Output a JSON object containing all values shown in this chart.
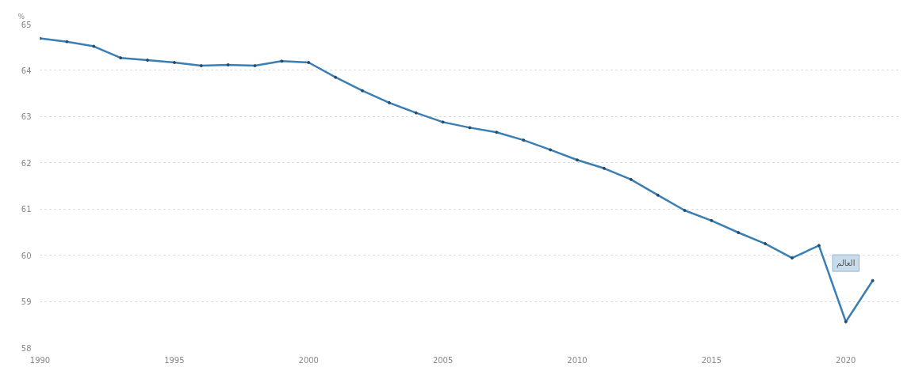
{
  "chart_data": {
    "type": "line",
    "ylabel": "%",
    "x": [
      1990,
      1991,
      1992,
      1993,
      1994,
      1995,
      1996,
      1997,
      1998,
      1999,
      2000,
      2001,
      2002,
      2003,
      2004,
      2005,
      2006,
      2007,
      2008,
      2009,
      2010,
      2011,
      2012,
      2013,
      2014,
      2015,
      2016,
      2017,
      2018,
      2019,
      2020,
      2021
    ],
    "series": [
      {
        "name": "العالم",
        "color": "#3a7fb4",
        "values": [
          64.69,
          64.62,
          64.52,
          64.27,
          64.22,
          64.17,
          64.1,
          64.12,
          64.1,
          64.2,
          64.17,
          63.85,
          63.56,
          63.3,
          63.08,
          62.88,
          62.76,
          62.66,
          62.49,
          62.28,
          62.06,
          61.88,
          61.64,
          61.3,
          60.97,
          60.75,
          60.49,
          60.25,
          59.94,
          60.21,
          58.56,
          59.45
        ]
      }
    ],
    "xlim": [
      1990,
      2022
    ],
    "ylim": [
      58,
      65
    ],
    "xticks": [
      1990,
      1995,
      2000,
      2005,
      2010,
      2015,
      2020
    ],
    "yticks": [
      58,
      59,
      60,
      61,
      62,
      63,
      64,
      65
    ],
    "grid": "y",
    "marker": "circle",
    "line_style": "solid"
  }
}
